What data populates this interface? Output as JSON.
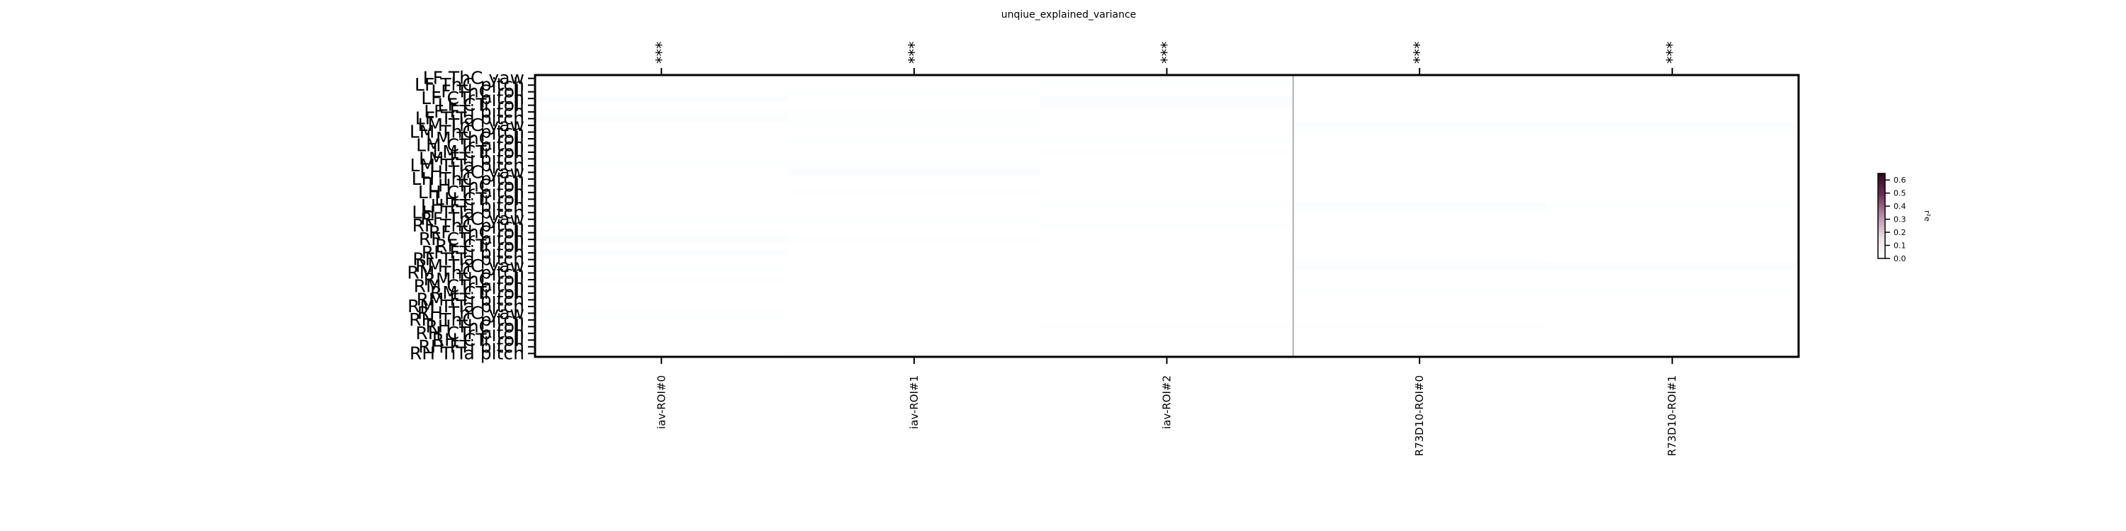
{
  "chart_data": {
    "type": "heatmap",
    "title": "unqiue_explained_variance",
    "columns": [
      "iav-ROI#0",
      "iav-ROI#1",
      "iav-ROI#2",
      "R73D10-ROI#0",
      "R73D10-ROI#1"
    ],
    "significance": [
      "***",
      "***",
      "***",
      "***",
      "***"
    ],
    "rows": [
      "LF ThC yaw",
      "LF ThC pitch",
      "LF ThC roll",
      "LF CTr pitch",
      "LF CTr roll",
      "LF FTi pitch",
      "LF TiTa pitch",
      "LM ThC yaw",
      "LM ThC pitch",
      "LM ThC roll",
      "LM CTr pitch",
      "LM CTr roll",
      "LM FTi pitch",
      "LM TiTa pitch",
      "LH ThC yaw",
      "LH ThC pitch",
      "LH ThC roll",
      "LH CTr pitch",
      "LH CTr roll",
      "LH FTi pitch",
      "LH TiTa pitch",
      "RF ThC yaw",
      "RF ThC pitch",
      "RF ThC roll",
      "RF CTr pitch",
      "RF CTr roll",
      "RF FTi pitch",
      "RF TiTa pitch",
      "RM ThC yaw",
      "RM ThC pitch",
      "RM ThC roll",
      "RM CTr pitch",
      "RM CTr roll",
      "RM FTi pitch",
      "RM TiTa pitch",
      "RH ThC yaw",
      "RH ThC pitch",
      "RH ThC roll",
      "RH CTr pitch",
      "RH CTr roll",
      "RH FTi pitch",
      "RH TiTa pitch"
    ],
    "values": [
      [
        0.01,
        0.0,
        0.0,
        0.0,
        0.0
      ],
      [
        0.0,
        0.0,
        0.01,
        0.0,
        0.0
      ],
      [
        0.0,
        0.01,
        0.0,
        0.0,
        0.0
      ],
      [
        0.02,
        0.0,
        0.02,
        0.0,
        0.0
      ],
      [
        0.0,
        0.0,
        0.02,
        0.0,
        0.0
      ],
      [
        0.01,
        0.01,
        0.0,
        0.0,
        0.0
      ],
      [
        0.02,
        0.01,
        0.0,
        0.0,
        0.0
      ],
      [
        0.0,
        0.01,
        0.0,
        0.02,
        0.02
      ],
      [
        0.0,
        0.0,
        0.0,
        0.01,
        0.01
      ],
      [
        0.0,
        0.01,
        0.01,
        0.0,
        0.0
      ],
      [
        0.0,
        0.0,
        0.0,
        0.0,
        0.0
      ],
      [
        0.0,
        0.0,
        0.01,
        0.0,
        0.0
      ],
      [
        0.0,
        0.0,
        0.0,
        0.0,
        0.0
      ],
      [
        0.01,
        0.01,
        0.0,
        0.0,
        0.0
      ],
      [
        0.0,
        0.02,
        0.0,
        0.0,
        0.0
      ],
      [
        0.0,
        0.0,
        0.0,
        0.0,
        0.0
      ],
      [
        0.0,
        0.0,
        0.0,
        0.0,
        0.0
      ],
      [
        0.0,
        0.01,
        0.0,
        0.0,
        0.0
      ],
      [
        0.0,
        0.0,
        0.0,
        0.0,
        0.0
      ],
      [
        0.0,
        0.0,
        0.01,
        0.02,
        0.01
      ],
      [
        0.0,
        0.0,
        0.0,
        0.01,
        0.0
      ],
      [
        0.01,
        0.01,
        0.0,
        0.0,
        0.0
      ],
      [
        0.0,
        0.0,
        0.01,
        0.0,
        0.0
      ],
      [
        0.01,
        0.0,
        0.0,
        0.0,
        0.0
      ],
      [
        0.02,
        0.01,
        0.0,
        0.0,
        0.0
      ],
      [
        0.0,
        0.0,
        0.0,
        0.0,
        0.0
      ],
      [
        0.02,
        0.0,
        0.0,
        0.0,
        0.0
      ],
      [
        0.0,
        0.0,
        0.0,
        0.01,
        0.0
      ],
      [
        0.01,
        0.0,
        0.0,
        0.02,
        0.02
      ],
      [
        0.0,
        0.0,
        0.0,
        0.0,
        0.0
      ],
      [
        0.01,
        0.0,
        0.0,
        0.0,
        0.0
      ],
      [
        0.0,
        0.0,
        0.0,
        0.0,
        0.0
      ],
      [
        0.0,
        0.0,
        0.0,
        0.01,
        0.01
      ],
      [
        0.0,
        0.0,
        0.0,
        0.0,
        0.0
      ],
      [
        0.0,
        0.0,
        0.0,
        0.0,
        0.0
      ],
      [
        0.01,
        0.0,
        0.0,
        0.0,
        0.0
      ],
      [
        0.0,
        0.0,
        0.0,
        0.0,
        0.0
      ],
      [
        0.0,
        0.0,
        0.01,
        0.01,
        0.0
      ],
      [
        0.0,
        0.0,
        0.0,
        0.0,
        0.0
      ],
      [
        0.0,
        0.0,
        0.0,
        0.0,
        0.0
      ],
      [
        0.0,
        0.0,
        0.0,
        0.0,
        0.0
      ],
      [
        0.0,
        0.01,
        0.01,
        0.0,
        0.0
      ]
    ],
    "colorbar": {
      "label": "r²e",
      "vmin": 0.0,
      "vmax": 0.65,
      "ticks": [
        0.0,
        0.1,
        0.2,
        0.3,
        0.4,
        0.5,
        0.6
      ]
    },
    "grid": false,
    "separator_after_column": 3
  }
}
